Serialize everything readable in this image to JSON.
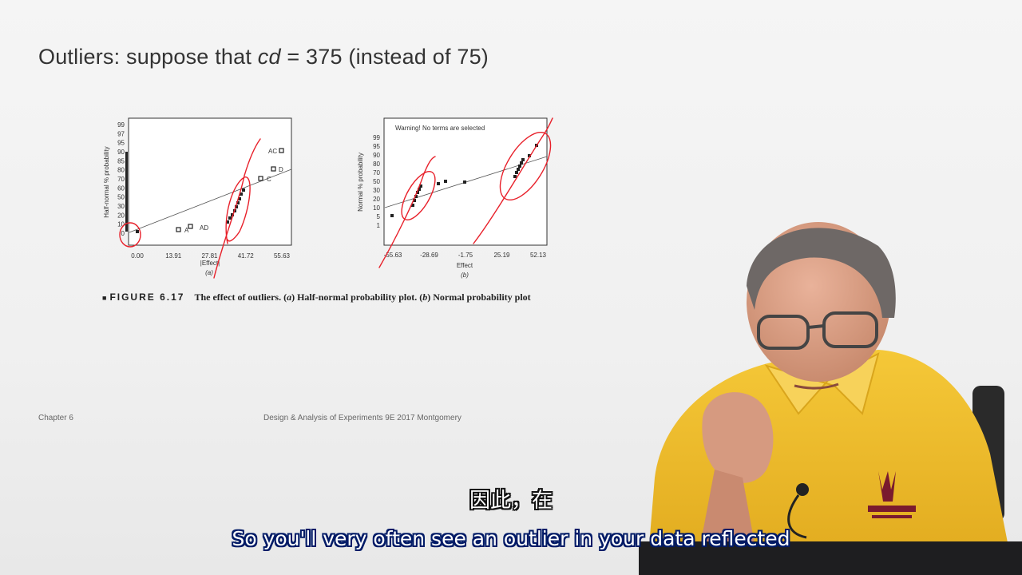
{
  "slide": {
    "title_prefix": "Outliers: suppose that ",
    "title_var": "cd",
    "title_suffix": " = 375 (instead of 75)",
    "footer_left": "Chapter 6",
    "footer_center": "Design & Analysis of Experiments 9E 2017 Montgomery"
  },
  "caption": {
    "figure_label": "FIGURE 6.17",
    "text_1": "The effect of outliers. (",
    "a": "a",
    "text_2": ") Half-normal probability plot. (",
    "b": "b",
    "text_3": ") Normal probability plot"
  },
  "plot_a": {
    "ylabel": "Half-normal % probability",
    "xlabel": "|Effect|",
    "panel_label": "(a)",
    "yticks": [
      "99",
      "97",
      "95",
      "90",
      "85",
      "80",
      "70",
      "60",
      "50",
      "30",
      "20",
      "10",
      "0"
    ],
    "xticks": [
      "0.00",
      "13.91",
      "27.81",
      "41.72",
      "55.63"
    ],
    "point_labels": [
      "A",
      "AD",
      "C",
      "D",
      "AC"
    ]
  },
  "plot_b": {
    "ylabel": "Normal % probability",
    "xlabel": "Effect",
    "panel_label": "(b)",
    "warning": "Warning! No terms are selected",
    "yticks": [
      "99",
      "95",
      "90",
      "80",
      "70",
      "50",
      "30",
      "20",
      "10",
      "5",
      "1"
    ],
    "xticks": [
      "-55.63",
      "-28.69",
      "-1.75",
      "25.19",
      "52.13"
    ]
  },
  "subtitles": {
    "chinese": "因此，在",
    "english": "So you'll very often see an outlier in your data reflected"
  },
  "colors": {
    "annotation_red": "#e8202a",
    "shirt_yellow": "#f2c12e",
    "subtitle_outline": "#001a66"
  }
}
